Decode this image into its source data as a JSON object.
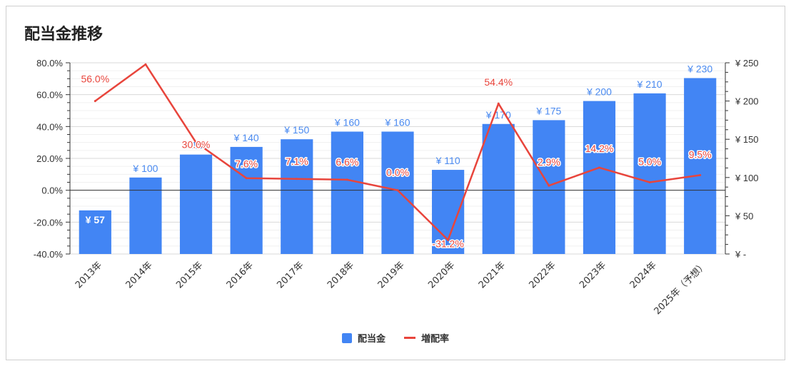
{
  "chart_data": {
    "type": "bar+line",
    "title": "配当金推移",
    "categories": [
      "2013年",
      "2014年",
      "2015年",
      "2016年",
      "2017年",
      "2018年",
      "2019年",
      "2020年",
      "2021年",
      "2022年",
      "2023年",
      "2024年",
      "2025年（予想）"
    ],
    "series": [
      {
        "name": "配当金",
        "type": "bar",
        "axis": "right",
        "color": "#4285f4",
        "values": [
          57,
          100,
          130,
          140,
          150,
          160,
          160,
          110,
          170,
          175,
          200,
          210,
          230
        ],
        "labels": [
          "¥ 57",
          "¥ 100",
          "¥ 130",
          "¥ 140",
          "¥ 150",
          "¥ 160",
          "¥ 160",
          "¥ 110",
          "¥ 170",
          "¥ 175",
          "¥ 200",
          "¥ 210",
          "¥ 230"
        ]
      },
      {
        "name": "増配率",
        "type": "line",
        "axis": "left",
        "color": "#e8453c",
        "values": [
          56.0,
          79.0,
          30.0,
          7.6,
          7.1,
          6.6,
          0.0,
          -31.2,
          54.4,
          2.9,
          14.2,
          5.0,
          9.5
        ],
        "labels": [
          "56.0%",
          "",
          "30.0%",
          "7.6%",
          "7.1%",
          "6.6%",
          "0.0%",
          "-31.2%",
          "54.4%",
          "2.9%",
          "14.2%",
          "5.0%",
          "9.5%"
        ]
      }
    ],
    "left_axis": {
      "ylim": [
        -40,
        80
      ],
      "ticks": [
        "80.0%",
        "60.0%",
        "40.0%",
        "20.0%",
        "0.0%",
        "-20.0%",
        "-40.0%"
      ]
    },
    "right_axis": {
      "ylim": [
        0,
        250
      ],
      "ticks": [
        "¥ 250",
        "¥ 200",
        "¥ 150",
        "¥ 100",
        "¥ 50",
        "¥ -"
      ]
    },
    "legend_position": "bottom",
    "grid": true
  }
}
